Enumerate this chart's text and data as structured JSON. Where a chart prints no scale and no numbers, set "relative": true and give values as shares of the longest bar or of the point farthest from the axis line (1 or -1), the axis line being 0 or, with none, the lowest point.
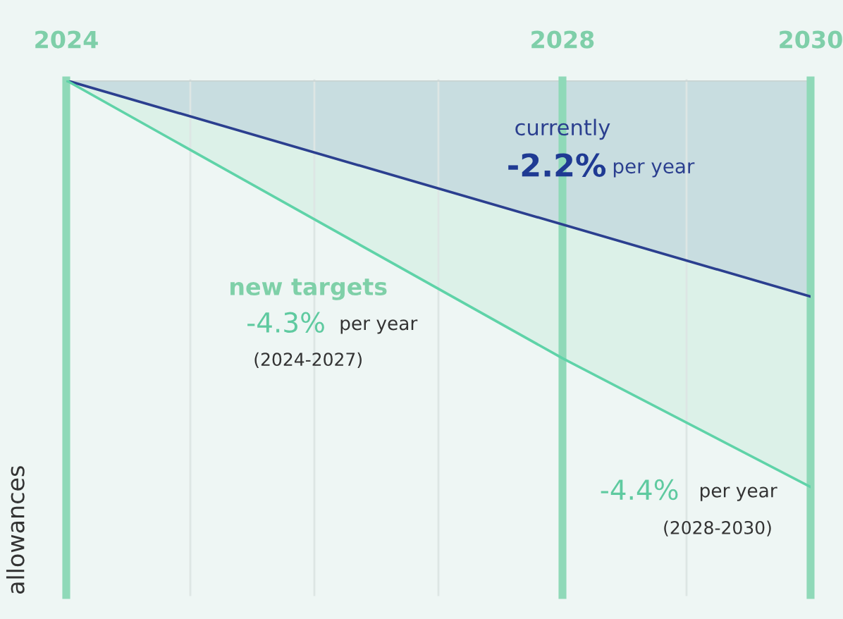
{
  "chart_data": {
    "type": "line",
    "relative": true,
    "ylabel": "allowances",
    "xlim": [
      2024,
      2030
    ],
    "xticks": [
      2024,
      {
        "value": 2025,
        "label": null
      },
      {
        "value": 2026,
        "label": null
      },
      {
        "value": 2027,
        "label": null
      },
      2028,
      {
        "value": 2029,
        "label": null
      },
      2030
    ],
    "grid": "x",
    "marker": "none",
    "line_style": "solid",
    "ref_lines": [
      {
        "axis": "x",
        "value": 2024,
        "color": "#8fd9b8"
      },
      {
        "axis": "x",
        "value": 2028,
        "color": "#8fd9b8"
      },
      {
        "axis": "x",
        "value": 2030,
        "color": "#8fd9b8"
      }
    ],
    "series": [
      {
        "color": "#2b3f8f",
        "x": [
          2024,
          2030
        ],
        "values": [
          1,
          0.58
        ]
      },
      {
        "color": "#5fd3a8",
        "x": [
          2024,
          2028,
          2030
        ],
        "values": [
          1,
          0.46,
          0.21
        ]
      }
    ],
    "annotations": [
      "currently",
      "-2.2%",
      "per year",
      "new targets",
      "-4.3%",
      "per year",
      "(2024-2027)",
      "-4.4%",
      "per year",
      "(2028-2030)"
    ]
  }
}
